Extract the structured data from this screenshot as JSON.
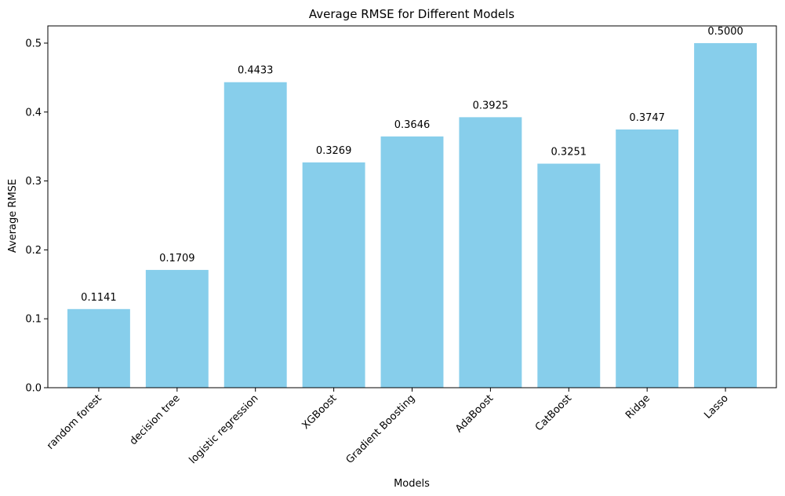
{
  "chart_data": {
    "type": "bar",
    "title": "Average RMSE for Different Models",
    "xlabel": "Models",
    "ylabel": "Average RMSE",
    "categories": [
      "random forest",
      "decision tree",
      "logistic regression",
      "XGBoost",
      "Gradient Boosting",
      "AdaBoost",
      "CatBoost",
      "Ridge",
      "Lasso"
    ],
    "values": [
      0.1141,
      0.1709,
      0.4433,
      0.3269,
      0.3646,
      0.3925,
      0.3251,
      0.3747,
      0.5
    ],
    "value_labels": [
      "0.1141",
      "0.1709",
      "0.4433",
      "0.3269",
      "0.3646",
      "0.3925",
      "0.3251",
      "0.3747",
      "0.5000"
    ],
    "ylim": [
      0,
      0.525
    ],
    "yticks": [
      0.0,
      0.1,
      0.2,
      0.3,
      0.4,
      0.5
    ],
    "ytick_labels": [
      "0.0",
      "0.1",
      "0.2",
      "0.3",
      "0.4",
      "0.5"
    ],
    "bar_color": "#87ceeb",
    "grid": false,
    "legend": "none"
  }
}
